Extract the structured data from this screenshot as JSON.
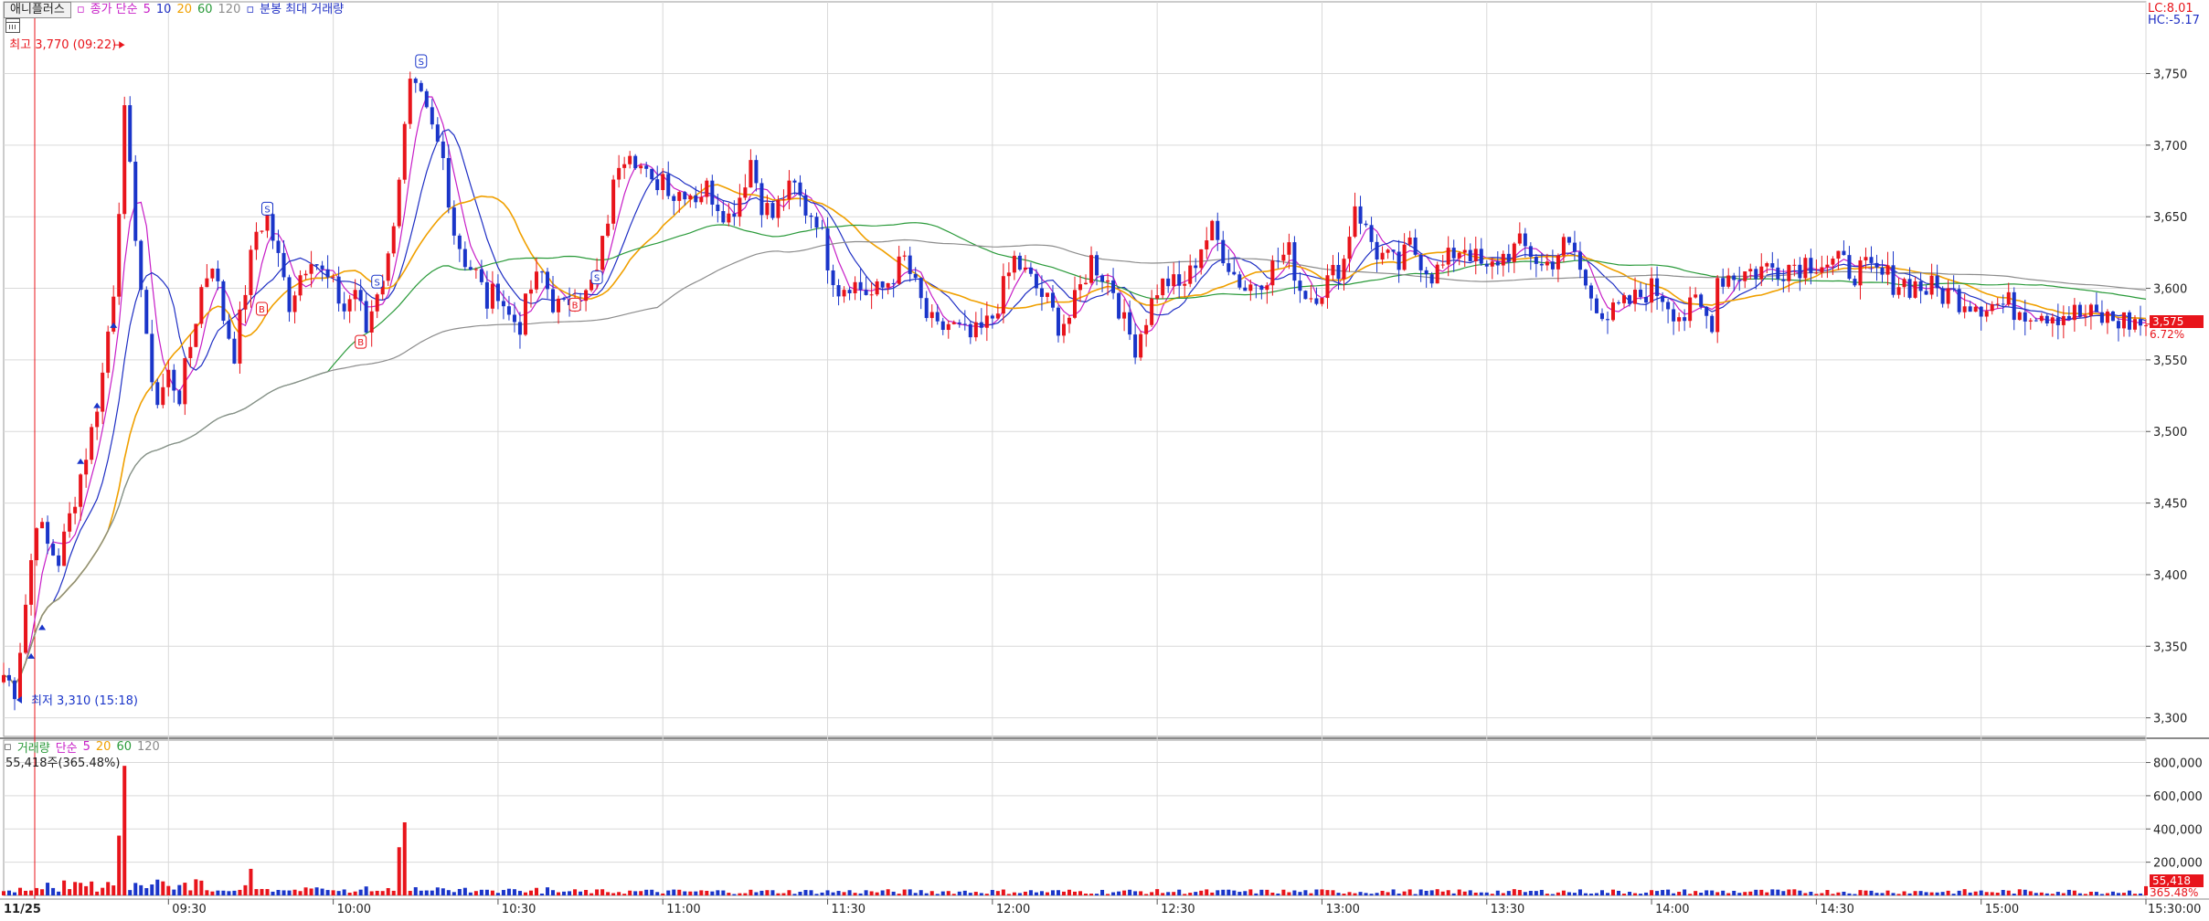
{
  "legend": {
    "stock_name": "애니플러스",
    "price_ma": "종가 단순",
    "ma5": "5",
    "ma10": "10",
    "ma20": "20",
    "ma60": "60",
    "ma120": "120",
    "intraday_max_volume": "분봉 최대 거래량"
  },
  "volume_legend": {
    "label": "거래량",
    "ma_label": "단순",
    "ma5": "5",
    "ma20": "20",
    "ma60": "60",
    "ma120": "120",
    "readout": "55,418주(365.48%)"
  },
  "corner": {
    "lc": "LC:8.01",
    "hc": "HC:-5.17"
  },
  "markers": {
    "high_label": "최고 3,770 (09:22)",
    "low_label": "최저 3,310 (15:18)",
    "buy_letter": "B",
    "sell_letter": "S"
  },
  "current": {
    "price_label": "3,575",
    "pct_label": "6.72%",
    "volume_label": "55,418",
    "volume_pct_label": "365.48%"
  },
  "colors": {
    "up": "#e8141b",
    "down": "#1a35c9",
    "ma5": "#c71ec7",
    "ma10": "#1f2fc4",
    "ma20": "#f0a000",
    "ma60": "#2a9a3a",
    "ma120": "#8c8c8c",
    "buy": "#1a35c9",
    "grid": "#d9d9d9"
  },
  "chart_data": [
    {
      "type": "candlestick",
      "title": "애니플러스",
      "date_label": "11/25",
      "x_tick_labels": [
        "09:30",
        "10:00",
        "10:30",
        "11:00",
        "11:30",
        "12:00",
        "12:30",
        "13:00",
        "13:30",
        "14:00",
        "14:30",
        "15:00",
        "15:30:00"
      ],
      "x_range": [
        "09:00",
        "15:30"
      ],
      "y_tick_labels": [
        "3,300",
        "3,350",
        "3,400",
        "3,450",
        "3,500",
        "3,550",
        "3,600",
        "3,650",
        "3,700",
        "3,750"
      ],
      "y_ticks": [
        3300,
        3350,
        3400,
        3450,
        3500,
        3550,
        3600,
        3650,
        3700,
        3750
      ],
      "ylim": [
        3287,
        3795
      ],
      "high": {
        "value": 3770,
        "time": "09:22"
      },
      "low": {
        "value": 3310,
        "time": "15:18"
      },
      "last_price": 3575,
      "moving_averages": [
        "5",
        "10",
        "20",
        "60",
        "120"
      ],
      "price_path": [
        [
          "09:00",
          3330
        ],
        [
          "09:02",
          3320
        ],
        [
          "09:04",
          3380
        ],
        [
          "09:06",
          3440
        ],
        [
          "09:08",
          3420
        ],
        [
          "09:10",
          3410
        ],
        [
          "09:12",
          3440
        ],
        [
          "09:14",
          3470
        ],
        [
          "09:16",
          3500
        ],
        [
          "09:18",
          3540
        ],
        [
          "09:20",
          3600
        ],
        [
          "09:22",
          3720
        ],
        [
          "09:24",
          3640
        ],
        [
          "09:26",
          3560
        ],
        [
          "09:28",
          3520
        ],
        [
          "09:30",
          3540
        ],
        [
          "09:32",
          3525
        ],
        [
          "09:34",
          3560
        ],
        [
          "09:36",
          3600
        ],
        [
          "09:38",
          3620
        ],
        [
          "09:40",
          3580
        ],
        [
          "09:42",
          3555
        ],
        [
          "09:44",
          3600
        ],
        [
          "09:46",
          3640
        ],
        [
          "09:48",
          3650
        ],
        [
          "09:50",
          3620
        ],
        [
          "09:52",
          3590
        ],
        [
          "09:54",
          3610
        ],
        [
          "09:56",
          3625
        ],
        [
          "09:58",
          3610
        ],
        [
          "10:00",
          3600
        ],
        [
          "10:02",
          3585
        ],
        [
          "10:04",
          3600
        ],
        [
          "10:06",
          3570
        ],
        [
          "10:08",
          3600
        ],
        [
          "10:10",
          3620
        ],
        [
          "10:12",
          3680
        ],
        [
          "10:14",
          3740
        ],
        [
          "10:16",
          3730
        ],
        [
          "10:18",
          3710
        ],
        [
          "10:20",
          3690
        ],
        [
          "10:22",
          3640
        ],
        [
          "10:24",
          3620
        ],
        [
          "10:26",
          3610
        ],
        [
          "10:28",
          3590
        ],
        [
          "10:30",
          3600
        ],
        [
          "10:32",
          3580
        ],
        [
          "10:34",
          3575
        ],
        [
          "10:36",
          3600
        ],
        [
          "10:38",
          3610
        ],
        [
          "10:40",
          3590
        ],
        [
          "10:42",
          3585
        ],
        [
          "10:44",
          3600
        ],
        [
          "10:46",
          3595
        ],
        [
          "10:48",
          3610
        ],
        [
          "10:50",
          3650
        ],
        [
          "10:52",
          3690
        ],
        [
          "10:54",
          3700
        ],
        [
          "10:56",
          3685
        ],
        [
          "10:58",
          3670
        ],
        [
          "11:00",
          3680
        ],
        [
          "11:02",
          3665
        ],
        [
          "11:04",
          3670
        ],
        [
          "11:06",
          3665
        ],
        [
          "11:08",
          3670
        ],
        [
          "11:10",
          3660
        ],
        [
          "11:12",
          3650
        ],
        [
          "11:14",
          3665
        ],
        [
          "11:16",
          3690
        ],
        [
          "11:18",
          3660
        ],
        [
          "11:20",
          3650
        ],
        [
          "11:22",
          3665
        ],
        [
          "11:24",
          3670
        ],
        [
          "11:26",
          3655
        ],
        [
          "11:28",
          3650
        ],
        [
          "11:30",
          3620
        ],
        [
          "11:32",
          3600
        ],
        [
          "11:34",
          3605
        ],
        [
          "11:36",
          3600
        ],
        [
          "11:38",
          3595
        ],
        [
          "11:40",
          3600
        ],
        [
          "11:42",
          3610
        ],
        [
          "11:44",
          3620
        ],
        [
          "11:46",
          3600
        ],
        [
          "11:48",
          3580
        ],
        [
          "11:50",
          3570
        ],
        [
          "11:52",
          3575
        ],
        [
          "11:54",
          3570
        ],
        [
          "11:56",
          3565
        ],
        [
          "11:58",
          3570
        ],
        [
          "12:00",
          3580
        ],
        [
          "12:02",
          3600
        ],
        [
          "12:04",
          3620
        ],
        [
          "12:06",
          3610
        ],
        [
          "12:08",
          3600
        ],
        [
          "12:10",
          3590
        ],
        [
          "12:12",
          3575
        ],
        [
          "12:14",
          3580
        ],
        [
          "12:16",
          3600
        ],
        [
          "12:18",
          3620
        ],
        [
          "12:20",
          3610
        ],
        [
          "12:22",
          3600
        ],
        [
          "12:24",
          3575
        ],
        [
          "12:26",
          3560
        ],
        [
          "12:28",
          3580
        ],
        [
          "12:30",
          3600
        ],
        [
          "12:32",
          3605
        ],
        [
          "12:34",
          3600
        ],
        [
          "12:36",
          3610
        ],
        [
          "12:38",
          3630
        ],
        [
          "12:40",
          3640
        ],
        [
          "12:42",
          3625
        ],
        [
          "12:44",
          3610
        ],
        [
          "12:46",
          3600
        ],
        [
          "12:48",
          3605
        ],
        [
          "12:50",
          3610
        ],
        [
          "12:52",
          3620
        ],
        [
          "12:54",
          3625
        ],
        [
          "12:56",
          3600
        ],
        [
          "12:58",
          3595
        ],
        [
          "13:00",
          3600
        ],
        [
          "13:02",
          3610
        ],
        [
          "13:04",
          3620
        ],
        [
          "13:06",
          3660
        ],
        [
          "13:08",
          3640
        ],
        [
          "13:10",
          3625
        ],
        [
          "13:12",
          3620
        ],
        [
          "13:14",
          3615
        ],
        [
          "13:16",
          3630
        ],
        [
          "13:18",
          3620
        ],
        [
          "13:20",
          3610
        ],
        [
          "13:22",
          3615
        ],
        [
          "13:24",
          3625
        ],
        [
          "13:26",
          3630
        ],
        [
          "13:28",
          3620
        ],
        [
          "13:30",
          3610
        ],
        [
          "13:32",
          3620
        ],
        [
          "13:34",
          3625
        ],
        [
          "13:36",
          3630
        ],
        [
          "13:38",
          3625
        ],
        [
          "13:40",
          3615
        ],
        [
          "13:42",
          3620
        ],
        [
          "13:44",
          3630
        ],
        [
          "13:46",
          3625
        ],
        [
          "13:48",
          3600
        ],
        [
          "13:50",
          3590
        ],
        [
          "13:52",
          3580
        ],
        [
          "13:54",
          3585
        ],
        [
          "13:56",
          3590
        ],
        [
          "13:58",
          3595
        ],
        [
          "14:00",
          3600
        ],
        [
          "14:02",
          3595
        ],
        [
          "14:04",
          3585
        ],
        [
          "14:06",
          3580
        ],
        [
          "14:08",
          3590
        ],
        [
          "14:10",
          3580
        ],
        [
          "14:12",
          3575
        ]
      ]
    },
    {
      "type": "bar",
      "title": "거래량",
      "y_tick_labels": [
        "200,000",
        "400,000",
        "600,000",
        "800,000"
      ],
      "y_ticks": [
        200000,
        400000,
        600000,
        800000
      ],
      "ylim": [
        0,
        880000
      ],
      "moving_averages": [
        "5",
        "20",
        "60",
        "120"
      ],
      "last_volume": 55418,
      "last_volume_pct": 365.48,
      "notable_bars": [
        {
          "time": "09:22",
          "volume": 780000
        },
        {
          "time": "09:21",
          "volume": 360000
        },
        {
          "time": "10:13",
          "volume": 440000
        },
        {
          "time": "10:12",
          "volume": 290000
        },
        {
          "time": "09:45",
          "volume": 160000
        },
        {
          "time": "15:30",
          "volume": 55418
        }
      ]
    }
  ]
}
